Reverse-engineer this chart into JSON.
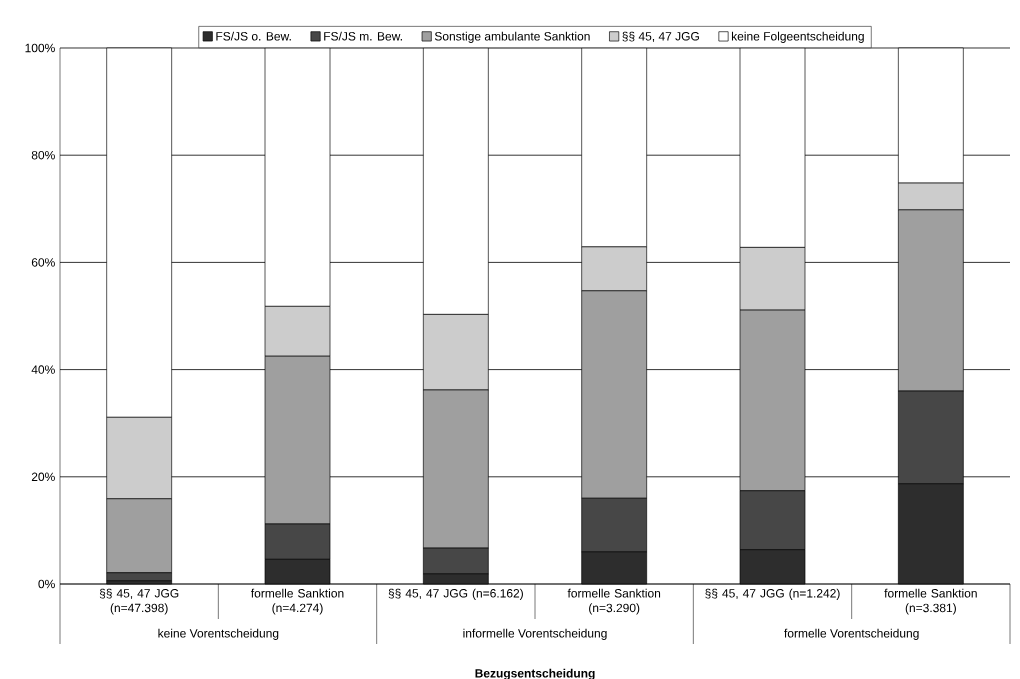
{
  "chart_data": {
    "type": "bar",
    "stacked": true,
    "xlabel": "Bezugsentscheidung",
    "categories": [
      "§§ 45, 47 JGG (n=47.398)",
      "formelle Sanktion (n=4.274)",
      "§§ 45, 47 JGG (n=6.162)",
      "formelle Sanktion (n=3.290)",
      "§§ 45, 47 JGG (n=1.242)",
      "formelle Sanktion (n=3.381)"
    ],
    "series": [
      {
        "name": "FS/JS o. Bew.",
        "color": "#2d2d2d",
        "values": [
          0.6,
          4.6,
          1.9,
          6.0,
          6.4,
          18.7
        ]
      },
      {
        "name": "FS/JS m. Bew.",
        "color": "#474747",
        "values": [
          1.5,
          6.6,
          4.8,
          10.0,
          11.0,
          17.3
        ]
      },
      {
        "name": "Sonstige ambulante Sanktion",
        "color": "#9f9f9f",
        "values": [
          13.8,
          31.3,
          29.5,
          38.7,
          33.7,
          33.8
        ]
      },
      {
        "name": "§§ 45, 47 JGG",
        "color": "#cccccc",
        "values": [
          15.2,
          9.3,
          14.1,
          8.2,
          11.7,
          5.0
        ]
      },
      {
        "name": "keine Folgeentscheidung",
        "color": "#ffffff",
        "values": [
          68.9,
          48.2,
          49.7,
          37.1,
          37.2,
          25.2
        ]
      }
    ],
    "annotations": [
      "keine Vorentscheidung",
      "informelle Vorentscheidung",
      "formelle Vorentscheidung"
    ],
    "ylim": [
      0,
      100
    ],
    "yticks": [
      {
        "value": 0,
        "label": "0%"
      },
      {
        "value": 20,
        "label": "20%"
      },
      {
        "value": 40,
        "label": "40%"
      },
      {
        "value": 60,
        "label": "60%"
      },
      {
        "value": 80,
        "label": "80%"
      },
      {
        "value": 100,
        "label": "100%"
      }
    ],
    "grid": "y",
    "legend": "top"
  }
}
